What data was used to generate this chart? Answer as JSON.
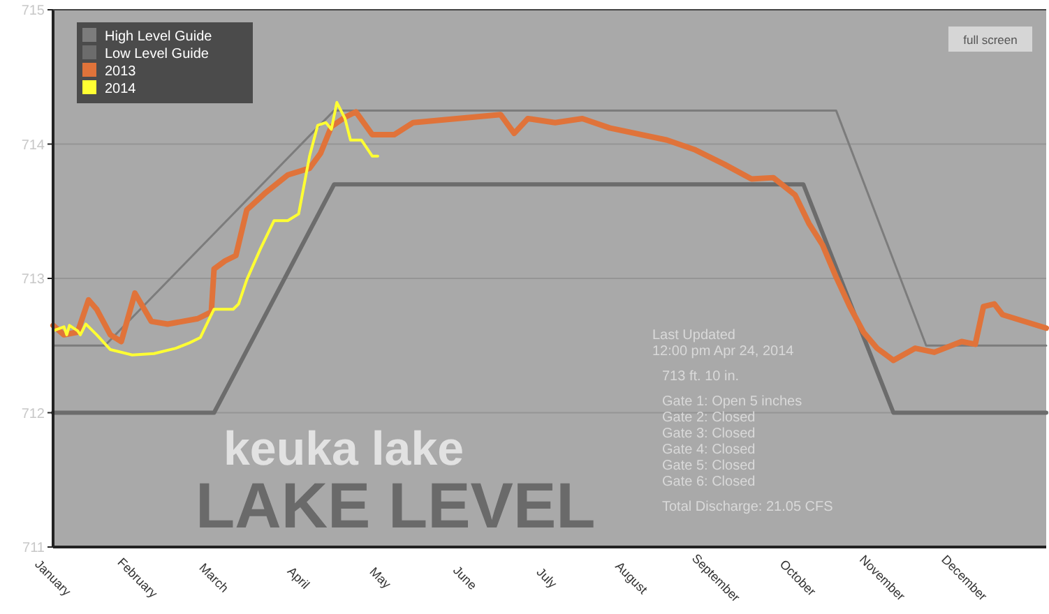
{
  "chart_data": {
    "type": "line",
    "title": "keuka lake",
    "subtitle": "LAKE LEVEL",
    "xlim": [
      "--01-01",
      "--12-31"
    ],
    "xticks": [
      {
        "value": "--01-01",
        "label": "January"
      },
      {
        "value": "--02-01",
        "label": "February"
      },
      {
        "value": "--03-01",
        "label": "March"
      },
      {
        "value": "--04-01",
        "label": "April"
      },
      {
        "value": "--05-01",
        "label": "May"
      },
      {
        "value": "--06-01",
        "label": "June"
      },
      {
        "value": "--07-01",
        "label": "July"
      },
      {
        "value": "--08-01",
        "label": "August"
      },
      {
        "value": "--09-01",
        "label": "September"
      },
      {
        "value": "--10-01",
        "label": "October"
      },
      {
        "value": "--11-01",
        "label": "November"
      },
      {
        "value": "--12-01",
        "label": "December"
      }
    ],
    "ylim": [
      711,
      715
    ],
    "yticks": [
      711,
      712,
      713,
      714,
      715
    ],
    "grid": "y",
    "legend": "top left",
    "marker": "none",
    "series": [
      {
        "name": "High Level Guide",
        "color": "#7c7c7c",
        "x": [
          "--01-01",
          "--01-20",
          "--04-14",
          "--10-15",
          "--11-17",
          "--12-31"
        ],
        "values": [
          712.5,
          712.5,
          714.25,
          714.25,
          712.5,
          712.5
        ]
      },
      {
        "name": "Low Level Guide",
        "color": "#6c6c6c",
        "x": [
          "--01-01",
          "--03-01",
          "--04-14",
          "--10-03",
          "--11-05",
          "--12-31"
        ],
        "values": [
          712,
          712,
          713.7,
          713.7,
          712,
          712
        ]
      },
      {
        "name": "2013",
        "color": "#e0733a",
        "x": [
          "--01-01",
          "--01-05",
          "--01-10",
          "--01-14",
          "--01-17",
          "--01-22",
          "--01-26",
          "--01-31",
          "--02-06",
          "--02-12",
          "--02-23",
          "--02-28",
          "--03-01",
          "--03-05",
          "--03-09",
          "--03-13",
          "--03-20",
          "--03-28",
          "--04-05",
          "--04-09",
          "--04-13",
          "--04-18",
          "--04-22",
          "--04-28",
          "--05-06",
          "--05-13",
          "--05-29",
          "--06-14",
          "--06-19",
          "--06-24",
          "--07-04",
          "--07-14",
          "--07-24",
          "--08-14",
          "--08-24",
          "--09-04",
          "--09-14",
          "--09-22",
          "--09-30",
          "--10-05",
          "--10-10",
          "--10-15",
          "--10-20",
          "--10-25",
          "--10-30",
          "--11-05",
          "--11-13",
          "--11-20",
          "--11-30",
          "--12-05",
          "--12-08",
          "--12-12",
          "--12-15",
          "--12-31"
        ],
        "values": [
          712.65,
          712.58,
          712.6,
          712.84,
          712.77,
          712.58,
          712.53,
          712.89,
          712.68,
          712.66,
          712.7,
          712.75,
          713.07,
          713.13,
          713.17,
          713.51,
          713.64,
          713.77,
          713.82,
          713.93,
          714.13,
          714.2,
          714.24,
          714.07,
          714.07,
          714.16,
          714.19,
          714.22,
          714.08,
          714.19,
          714.16,
          714.19,
          714.12,
          714.03,
          713.96,
          713.85,
          713.74,
          713.75,
          713.62,
          713.41,
          713.25,
          713.01,
          712.79,
          712.6,
          712.48,
          712.39,
          712.48,
          712.45,
          712.53,
          712.51,
          712.79,
          712.81,
          712.73,
          712.63
        ]
      },
      {
        "name": "2014",
        "color": "#ffff33",
        "x": [
          "--01-01",
          "--01-05",
          "--01-06",
          "--01-07",
          "--01-10",
          "--01-11",
          "--01-13",
          "--01-17",
          "--01-22",
          "--01-30",
          "--02-07",
          "--02-15",
          "--02-20",
          "--02-24",
          "--02-28",
          "--03-01",
          "--03-08",
          "--03-10",
          "--03-13",
          "--03-18",
          "--03-23",
          "--03-28",
          "--04-01",
          "--04-05",
          "--04-08",
          "--04-11",
          "--04-13",
          "--04-15",
          "--04-18",
          "--04-20",
          "--04-24",
          "--04-28",
          "--04-30"
        ],
        "values": [
          712.61,
          712.64,
          712.58,
          712.65,
          712.61,
          712.58,
          712.66,
          712.58,
          712.47,
          712.43,
          712.44,
          712.48,
          712.52,
          712.56,
          712.73,
          712.77,
          712.77,
          712.81,
          712.99,
          713.22,
          713.43,
          713.43,
          713.48,
          713.91,
          714.14,
          714.16,
          714.11,
          714.31,
          714.19,
          714.03,
          714.03,
          713.91,
          713.91
        ]
      }
    ],
    "annotations": [
      "full screen",
      "Last Updated",
      "12:00 pm Apr 24, 2014",
      "713 ft. 10 in.",
      "Gate 1: Open 5 inches",
      "Gate 2: Closed",
      "Gate 3: Closed",
      "Gate 4: Closed",
      "Gate 5: Closed",
      "Gate 6: Closed",
      "Total Discharge: 21.05 CFS"
    ]
  }
}
